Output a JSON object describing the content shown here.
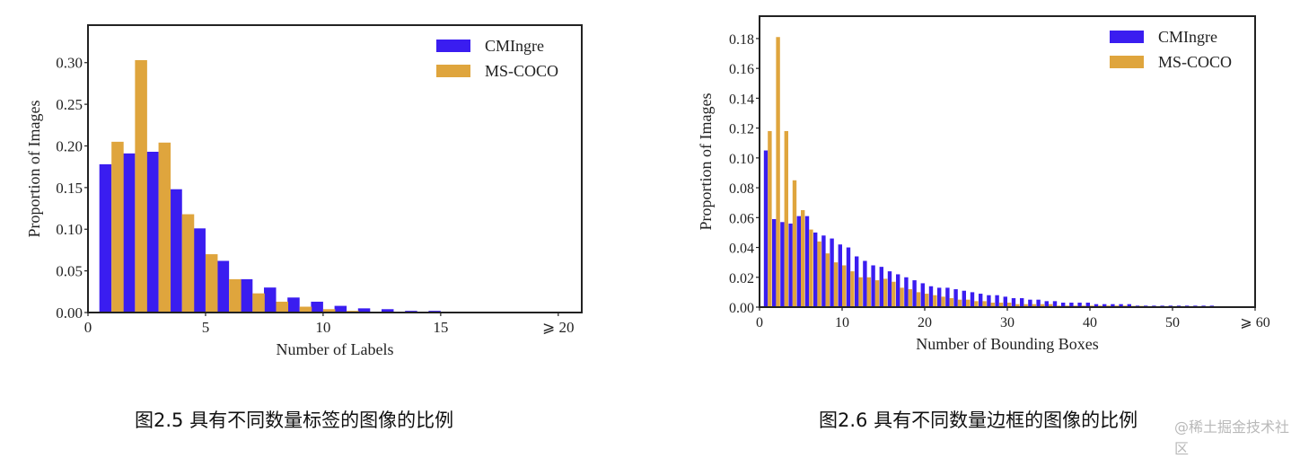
{
  "captions": {
    "left": "图2.5 具有不同数量标签的图像的比例",
    "right": "图2.6 具有不同数量边框的图像的比例"
  },
  "watermark": "@稀土掘金技术社区",
  "colors": {
    "cmingre": "#3a1df0",
    "mscoco": "#dfa53d",
    "axis": "#222222"
  },
  "chart_data": [
    {
      "type": "bar",
      "xlabel": "Number of Labels",
      "ylabel": "Proportion of Images",
      "xlim": [
        0,
        21
      ],
      "ylim": [
        0,
        0.345
      ],
      "xticks": [
        0,
        5,
        10,
        15,
        20
      ],
      "xtick_labels": [
        "0",
        "5",
        "10",
        "15",
        "⩾ 20"
      ],
      "yticks": [
        0.0,
        0.05,
        0.1,
        0.15,
        0.2,
        0.25,
        0.3
      ],
      "ytick_labels": [
        "0.00",
        "0.05",
        "0.10",
        "0.15",
        "0.20",
        "0.25",
        "0.30"
      ],
      "legend_position": "top-right",
      "series": [
        {
          "name": "CMIngre",
          "x": [
            1,
            2,
            3,
            4,
            5,
            6,
            7,
            8,
            9,
            10,
            11,
            12,
            13,
            14,
            15,
            16,
            17,
            18,
            19,
            20
          ],
          "values": [
            0.178,
            0.191,
            0.193,
            0.148,
            0.101,
            0.062,
            0.04,
            0.03,
            0.018,
            0.013,
            0.008,
            0.005,
            0.004,
            0.002,
            0.002,
            0.001,
            0.001,
            0.0005,
            0.0005,
            0.0005
          ]
        },
        {
          "name": "MS-COCO",
          "x": [
            1,
            2,
            3,
            4,
            5,
            6,
            7,
            8,
            9,
            10,
            11,
            12,
            13,
            14,
            15,
            16,
            17,
            18,
            19,
            20
          ],
          "values": [
            0.205,
            0.303,
            0.204,
            0.118,
            0.07,
            0.04,
            0.023,
            0.013,
            0.007,
            0.004,
            0.002,
            0.001,
            0.0008,
            0.0005,
            0.0005,
            0.0003,
            0.0003,
            0.0002,
            0.0002,
            0.0002
          ]
        }
      ]
    },
    {
      "type": "bar",
      "xlabel": "Number of Bounding Boxes",
      "ylabel": "Proportion of Images",
      "xlim": [
        0,
        60
      ],
      "ylim": [
        0,
        0.195
      ],
      "xticks": [
        0,
        10,
        20,
        30,
        40,
        50,
        60
      ],
      "xtick_labels": [
        "0",
        "10",
        "20",
        "30",
        "40",
        "50",
        "⩾ 60"
      ],
      "yticks": [
        0.0,
        0.02,
        0.04,
        0.06,
        0.08,
        0.1,
        0.12,
        0.14,
        0.16,
        0.18
      ],
      "ytick_labels": [
        "0.00",
        "0.02",
        "0.04",
        "0.06",
        "0.08",
        "0.10",
        "0.12",
        "0.14",
        "0.16",
        "0.18"
      ],
      "legend_position": "top-right",
      "series": [
        {
          "name": "CMIngre",
          "x": [
            1,
            2,
            3,
            4,
            5,
            6,
            7,
            8,
            9,
            10,
            11,
            12,
            13,
            14,
            15,
            16,
            17,
            18,
            19,
            20,
            21,
            22,
            23,
            24,
            25,
            26,
            27,
            28,
            29,
            30,
            31,
            32,
            33,
            34,
            35,
            36,
            37,
            38,
            39,
            40,
            41,
            42,
            43,
            44,
            45,
            46,
            47,
            48,
            49,
            50,
            51,
            52,
            53,
            54,
            55
          ],
          "values": [
            0.105,
            0.059,
            0.057,
            0.056,
            0.061,
            0.061,
            0.05,
            0.048,
            0.046,
            0.042,
            0.04,
            0.034,
            0.031,
            0.028,
            0.027,
            0.024,
            0.022,
            0.02,
            0.018,
            0.016,
            0.014,
            0.013,
            0.013,
            0.012,
            0.011,
            0.01,
            0.009,
            0.008,
            0.008,
            0.007,
            0.006,
            0.006,
            0.005,
            0.005,
            0.004,
            0.004,
            0.003,
            0.003,
            0.003,
            0.003,
            0.002,
            0.002,
            0.002,
            0.002,
            0.002,
            0.001,
            0.001,
            0.001,
            0.001,
            0.001,
            0.001,
            0.001,
            0.001,
            0.001,
            0.001
          ]
        },
        {
          "name": "MS-COCO",
          "x": [
            1,
            2,
            3,
            4,
            5,
            6,
            7,
            8,
            9,
            10,
            11,
            12,
            13,
            14,
            15,
            16,
            17,
            18,
            19,
            20,
            21,
            22,
            23,
            24,
            25,
            26,
            27,
            28,
            29,
            30,
            31,
            32,
            33,
            34,
            35,
            36,
            37,
            38,
            39,
            40,
            41,
            42,
            43,
            44,
            45,
            46,
            47,
            48,
            49,
            50,
            51,
            52,
            53,
            54,
            55
          ],
          "values": [
            0.118,
            0.181,
            0.118,
            0.085,
            0.065,
            0.052,
            0.044,
            0.036,
            0.03,
            0.028,
            0.024,
            0.02,
            0.02,
            0.018,
            0.019,
            0.017,
            0.013,
            0.012,
            0.01,
            0.009,
            0.008,
            0.007,
            0.006,
            0.005,
            0.005,
            0.004,
            0.004,
            0.003,
            0.003,
            0.003,
            0.002,
            0.002,
            0.002,
            0.002,
            0.002,
            0.001,
            0.001,
            0.001,
            0.001,
            0.001,
            0.001,
            0.001,
            0.001,
            0.001,
            0.0008,
            0.0008,
            0.0006,
            0.0006,
            0.0005,
            0.0005,
            0.0004,
            0.0004,
            0.0003,
            0.0003,
            0.0003
          ]
        }
      ]
    }
  ]
}
